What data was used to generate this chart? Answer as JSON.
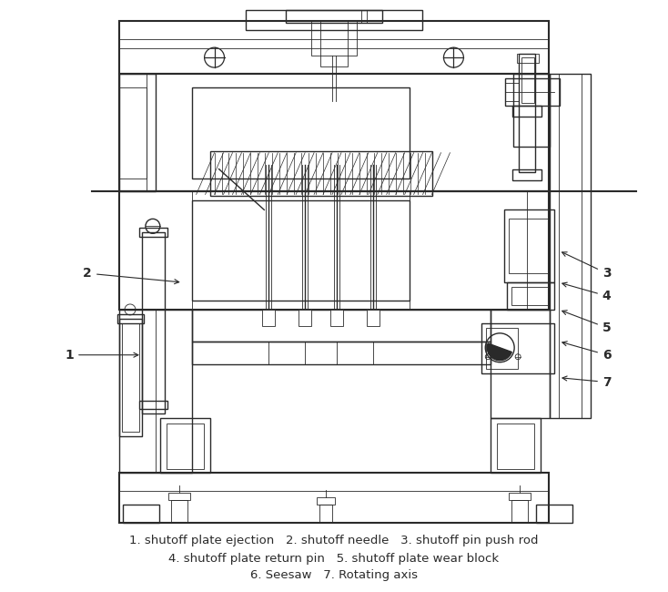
{
  "caption_line1": "1. shutoff plate ejection   2. shutoff needle   3. shutoff pin push rod",
  "caption_line2": "4. shutoff plate return pin   5. shutoff plate wear block",
  "caption_line3": "6. Seesaw   7. Rotating axis",
  "bg_color": "#ffffff",
  "line_color": "#2a2a2a"
}
